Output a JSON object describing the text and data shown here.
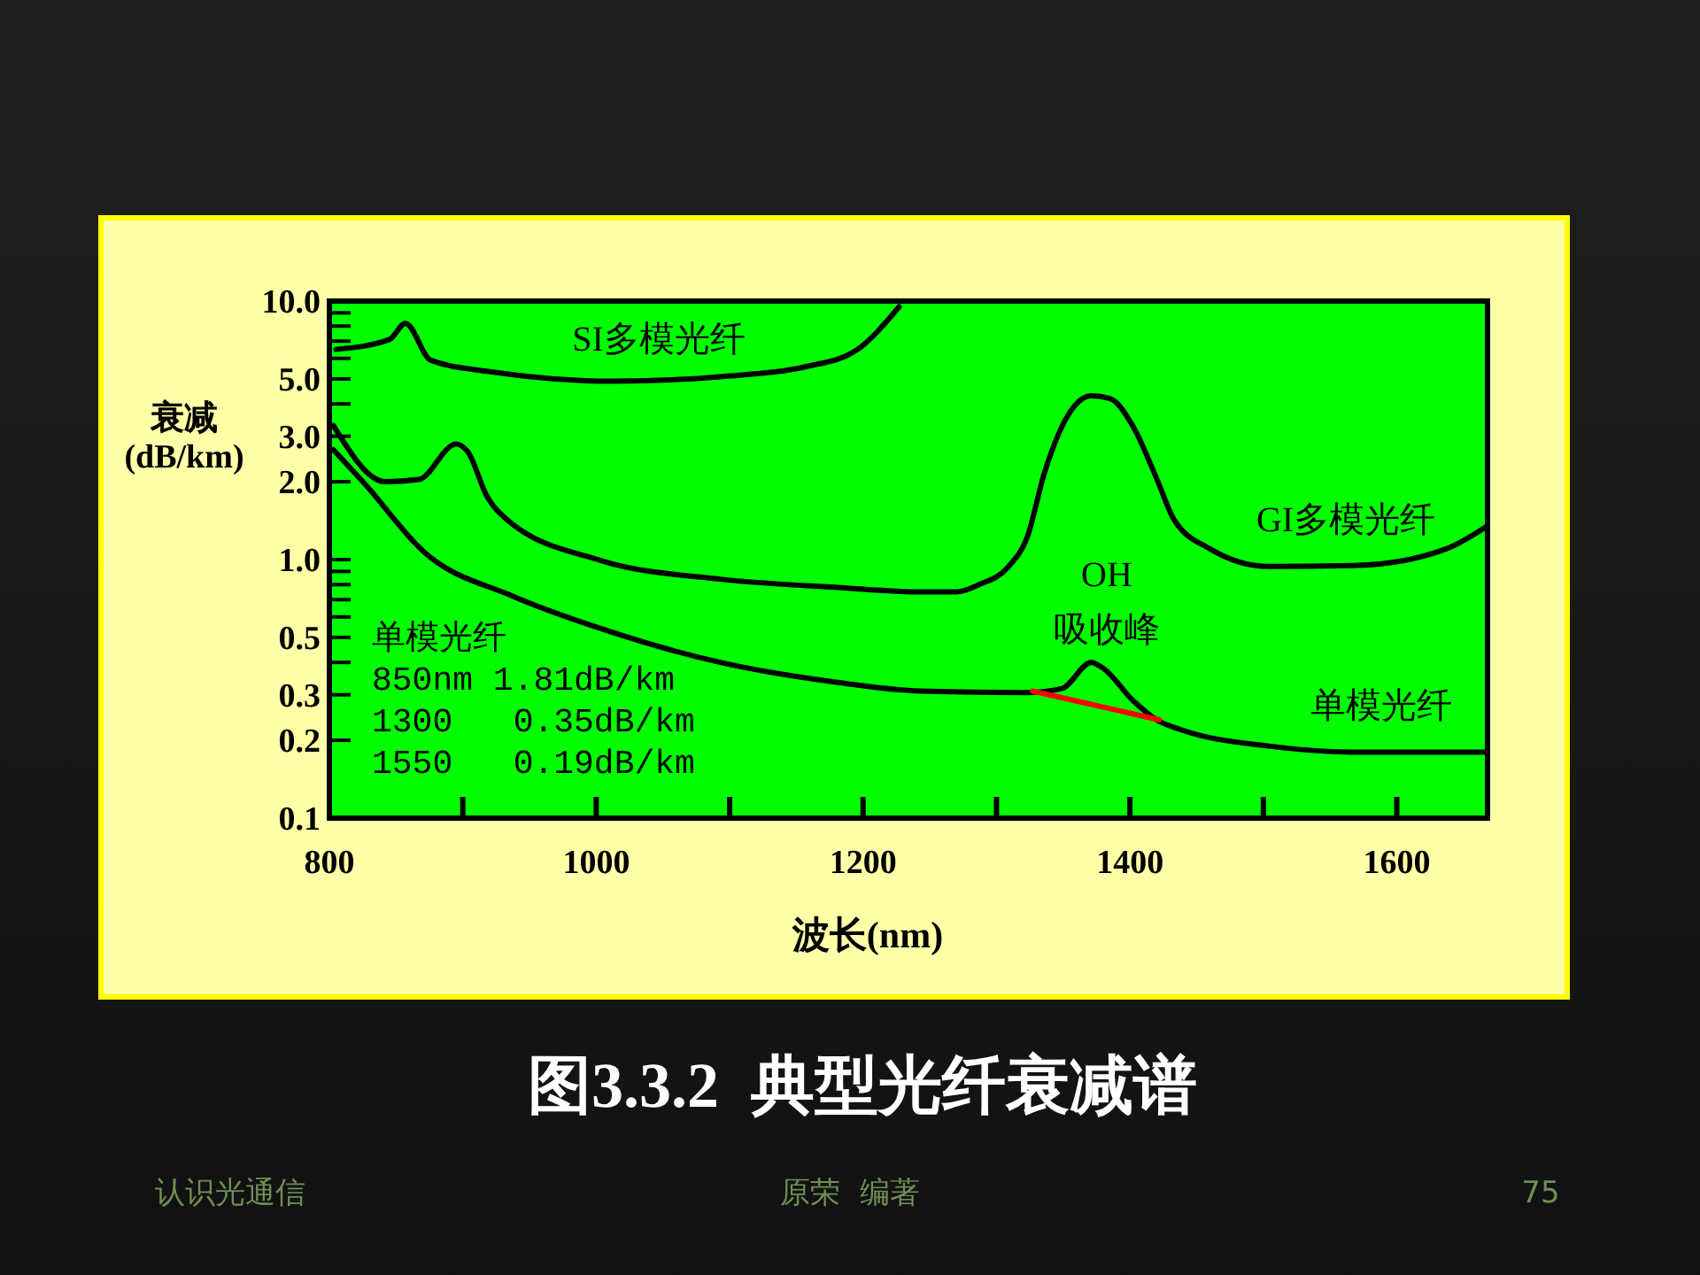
{
  "chart_data": {
    "type": "line",
    "title": "图3.3.2  典型光纤衰减谱",
    "xlabel": "波长(nm)",
    "ylabel": "衰减\n(dB/km)",
    "log": "y",
    "grid": false,
    "xlim": [
      800,
      1668
    ],
    "xticks": [
      800,
      {
        "value": 900,
        "label": null
      },
      1000,
      {
        "value": 1100,
        "label": null
      },
      1200,
      {
        "value": 1300,
        "label": null
      },
      1400,
      {
        "value": 1500,
        "label": null
      },
      1600
    ],
    "ylim": [
      0.1,
      10
    ],
    "yticks": [
      {
        "value": 0.1,
        "label": "0.1"
      },
      {
        "value": 0.2,
        "label": "0.2"
      },
      {
        "value": 0.3,
        "label": "0.3"
      },
      {
        "value": 0.4,
        "label": null
      },
      {
        "value": 0.5,
        "label": "0.5"
      },
      {
        "value": 0.6,
        "label": null
      },
      {
        "value": 0.7,
        "label": null
      },
      {
        "value": 0.8,
        "label": null
      },
      {
        "value": 0.9,
        "label": null
      },
      {
        "value": 1,
        "label": "1.0"
      },
      {
        "value": 2,
        "label": "2.0"
      },
      {
        "value": 3,
        "label": "3.0"
      },
      {
        "value": 4,
        "label": null
      },
      {
        "value": 5,
        "label": "5.0"
      },
      {
        "value": 6,
        "label": null
      },
      {
        "value": 7,
        "label": null
      },
      {
        "value": 8,
        "label": null
      },
      {
        "value": 9,
        "label": null
      },
      {
        "value": 10,
        "label": "10.0"
      }
    ],
    "series": [
      {
        "name": "SI多模光纤",
        "color": "#000000",
        "x": [
          805,
          845,
          857,
          876,
          924,
          969,
          1013,
          1093,
          1159,
          1194,
          1227
        ],
        "values": [
          6.5,
          7.1,
          8.2,
          5.9,
          5.3,
          5.0,
          4.9,
          5.1,
          5.6,
          6.4,
          9.5
        ]
      },
      {
        "name": "GI多模光纤",
        "color": "#000000",
        "x": [
          803,
          842,
          867,
          895,
          904,
          918,
          933,
          1004,
          1093,
          1181,
          1243,
          1270,
          1287,
          1309,
          1323,
          1336,
          1352,
          1371,
          1385,
          1402,
          1420,
          1433,
          1460,
          1504,
          1571,
          1637,
          1668
        ],
        "values": [
          3.3,
          2.0,
          2.04,
          2.8,
          2.6,
          1.76,
          1.43,
          0.99,
          0.84,
          0.78,
          0.75,
          0.75,
          0.8,
          0.94,
          1.22,
          2.17,
          3.5,
          4.3,
          4.2,
          3.3,
          2.06,
          1.43,
          1.1,
          0.94,
          0.95,
          1.1,
          1.35
        ]
      },
      {
        "name": "单模光纤",
        "color": "#000000",
        "x": [
          803,
          827,
          871,
          938,
          1004,
          1093,
          1181,
          1243,
          1323,
          1349,
          1371,
          1380,
          1402,
          1420,
          1438,
          1504,
          1571,
          1668
        ],
        "values": [
          2.66,
          1.95,
          1.07,
          0.72,
          0.54,
          0.4,
          0.335,
          0.31,
          0.306,
          0.317,
          0.4,
          0.38,
          0.286,
          0.24,
          0.22,
          0.19,
          0.18,
          0.18
        ]
      },
      {
        "color": "#ff0000",
        "x": [
          1327,
          1422
        ],
        "values": [
          0.31,
          0.24
        ]
      }
    ],
    "annotations": [
      "OH\n吸收峰",
      "单模光纤\n850nm 1.81dB/km\n1300   0.35dB/km\n1550   0.19dB/km",
      "认识光通信",
      "原荣  编著",
      "75"
    ]
  }
}
